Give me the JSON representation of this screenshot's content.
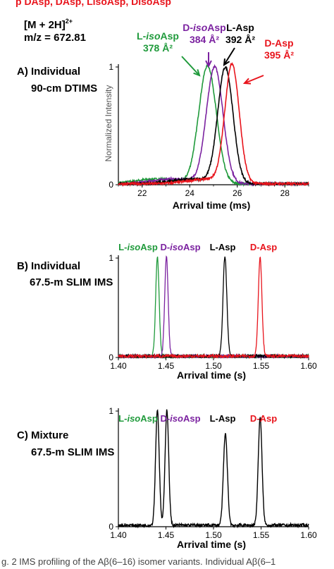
{
  "colors": {
    "l_asp": "#000000",
    "d_asp": "#e8141c",
    "l_isoasp": "#1f9a3b",
    "d_isoasp": "#7b22a0"
  },
  "header": {
    "top_strip": "p  DAsp, DAsp, LisoAsp, DisoAsp",
    "ion": "[M + 2H]",
    "ion_charge": "2+",
    "mz": "m/z = 672.81"
  },
  "caption": "g. 2  IMS profiling of the Aβ(6–16) isomer variants. Individual Aβ(6–1",
  "chart_data": [
    {
      "type": "line",
      "panel_label_line1": "A) Individual",
      "panel_label_line2": "90-cm DTIMS",
      "xlabel": "Arrival time (ms)",
      "ylabel": "Normalized Intensity",
      "xlim": [
        21,
        29
      ],
      "ylim": [
        0,
        1
      ],
      "x_ticks": [
        "22",
        "24",
        "26",
        "28"
      ],
      "x_tick_values": [
        22,
        24,
        26,
        28
      ],
      "y_ticks": [
        "0",
        "1"
      ],
      "series": [
        {
          "name": "L-isoAsp",
          "ccs": "378 Å²",
          "color": "#1f9a3b",
          "peak_center": 24.75,
          "width": 0.37,
          "height": 1.0
        },
        {
          "name": "D-isoAsp",
          "ccs": "384 Å²",
          "color": "#7b22a0",
          "peak_center": 25.05,
          "width": 0.35,
          "height": 0.99
        },
        {
          "name": "L-Asp",
          "ccs": "392 Å²",
          "color": "#000000",
          "peak_center": 25.5,
          "width": 0.32,
          "height": 0.98
        },
        {
          "name": "D-Asp",
          "ccs": "395 Å²",
          "color": "#e8141c",
          "peak_center": 25.78,
          "width": 0.3,
          "height": 1.0
        }
      ],
      "annotation_labels": [
        {
          "name_prefix": "L-",
          "name_italic": "iso",
          "name_suffix": "Asp",
          "ccs": "378 Å²",
          "color": "#1f9a3b"
        },
        {
          "name_prefix": "D-",
          "name_italic": "iso",
          "name_suffix": "Asp",
          "ccs": "384 Å²",
          "color": "#7b22a0"
        },
        {
          "name_prefix": "L-",
          "name_italic": "",
          "name_suffix": "Asp",
          "ccs": "392 Å²",
          "color": "#000000"
        },
        {
          "name_prefix": "D-",
          "name_italic": "",
          "name_suffix": "Asp",
          "ccs": "395 Å²",
          "color": "#e8141c"
        }
      ]
    },
    {
      "type": "line",
      "panel_label_line1": "B) Individual",
      "panel_label_line2": "67.5-m SLIM IMS",
      "xlabel": "Arrival time (s)",
      "xlim": [
        1.4,
        1.6
      ],
      "ylim": [
        0,
        1
      ],
      "x_ticks": [
        "1.40",
        "1.45",
        "1.50",
        "1.55",
        "1.60"
      ],
      "x_tick_values": [
        1.4,
        1.45,
        1.5,
        1.55,
        1.6
      ],
      "y_ticks": [
        "0",
        "1"
      ],
      "series": [
        {
          "name": "L-isoAsp",
          "color": "#1f9a3b",
          "peak_center": 1.441,
          "width": 0.0018,
          "height": 1.0
        },
        {
          "name": "D-isoAsp",
          "color": "#7b22a0",
          "peak_center": 1.4505,
          "width": 0.0018,
          "height": 1.0
        },
        {
          "name": "L-Asp",
          "color": "#000000",
          "peak_center": 1.512,
          "width": 0.002,
          "height": 1.0
        },
        {
          "name": "D-Asp",
          "color": "#e8141c",
          "peak_center": 1.549,
          "width": 0.0019,
          "height": 1.0
        }
      ],
      "legend_labels": [
        {
          "name_prefix": "L-",
          "name_italic": "iso",
          "name_suffix": "Asp",
          "color": "#1f9a3b"
        },
        {
          "name_prefix": "D-",
          "name_italic": "iso",
          "name_suffix": "Asp",
          "color": "#7b22a0"
        },
        {
          "name_prefix": "L-",
          "name_italic": "",
          "name_suffix": "Asp",
          "color": "#000000"
        },
        {
          "name_prefix": "D-",
          "name_italic": "",
          "name_suffix": "Asp",
          "color": "#e8141c"
        }
      ]
    },
    {
      "type": "line",
      "panel_label_line1": "C) Mixture",
      "panel_label_line2": "67.5-m SLIM IMS",
      "xlabel": "Arrival time (s)",
      "xlim": [
        1.4,
        1.6
      ],
      "ylim": [
        0,
        1
      ],
      "x_ticks": [
        "1.40",
        "1.45",
        "1.50",
        "1.55",
        "1.60"
      ],
      "x_tick_values": [
        1.4,
        1.45,
        1.5,
        1.55,
        1.6
      ],
      "y_ticks": [
        "0",
        "1"
      ],
      "series": [
        {
          "name": "Mixture",
          "color": "#000000",
          "peaks": [
            {
              "center": 1.441,
              "width": 0.0019,
              "height": 1.0
            },
            {
              "center": 1.451,
              "width": 0.0019,
              "height": 1.0
            },
            {
              "center": 1.5125,
              "width": 0.0021,
              "height": 0.79
            },
            {
              "center": 1.549,
              "width": 0.002,
              "height": 0.93
            }
          ]
        }
      ],
      "legend_labels": [
        {
          "name_prefix": "L-",
          "name_italic": "iso",
          "name_suffix": "Asp",
          "color": "#1f9a3b"
        },
        {
          "name_prefix": "D-",
          "name_italic": "iso",
          "name_suffix": "Asp",
          "color": "#7b22a0"
        },
        {
          "name_prefix": "L-",
          "name_italic": "",
          "name_suffix": "Asp",
          "color": "#000000"
        },
        {
          "name_prefix": "D-",
          "name_italic": "",
          "name_suffix": "Asp",
          "color": "#e8141c"
        }
      ]
    }
  ]
}
